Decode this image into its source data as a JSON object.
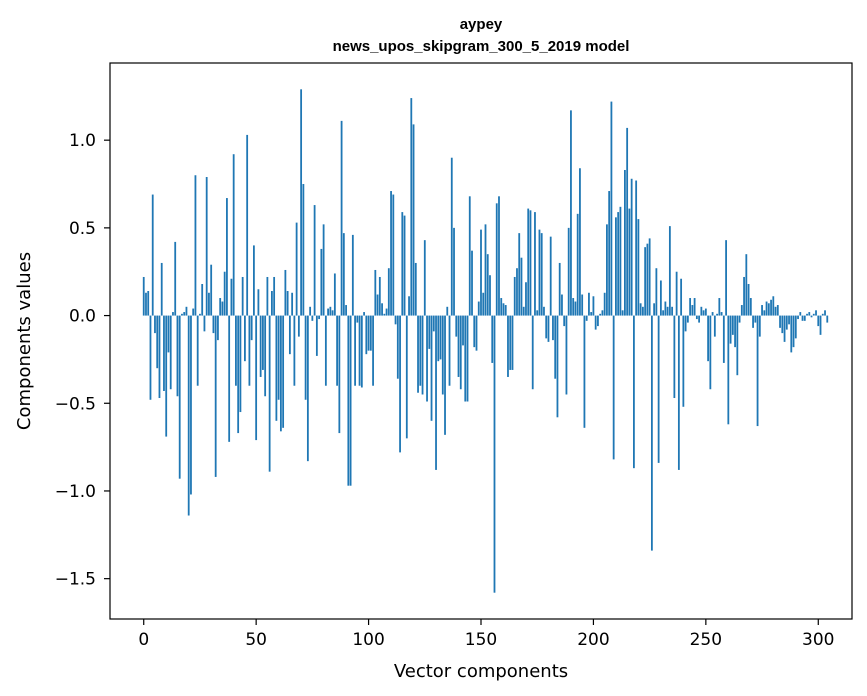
{
  "chart_data": {
    "type": "bar",
    "title_line1": "aypey",
    "title_line2": "news_upos_skipgram_300_5_2019 model",
    "xlabel": "Vector components",
    "ylabel": "Components values",
    "xlim": [
      -15,
      315
    ],
    "ylim": [
      -1.73,
      1.44
    ],
    "xticks": [
      0,
      50,
      100,
      150,
      200,
      250,
      300
    ],
    "yticks": [
      -1.5,
      -1.0,
      -0.5,
      0.0,
      0.5,
      1.0
    ],
    "ytick_labels": [
      "−1.5",
      "−1.0",
      "−0.5",
      "0.0",
      "0.5",
      "1.0"
    ],
    "bar_width": 0.8,
    "color": "#1f77b4",
    "values": [
      0.22,
      0.13,
      0.14,
      -0.48,
      0.69,
      -0.1,
      -0.3,
      -0.47,
      0.3,
      -0.43,
      -0.69,
      -0.21,
      -0.42,
      0.02,
      0.42,
      -0.46,
      -0.93,
      0.01,
      0.02,
      0.05,
      -1.14,
      -1.02,
      0.04,
      0.8,
      -0.4,
      0.01,
      0.18,
      -0.09,
      0.79,
      0.13,
      0.29,
      -0.1,
      -0.92,
      -0.14,
      0.1,
      0.08,
      0.25,
      0.67,
      -0.72,
      0.21,
      0.92,
      -0.4,
      -0.67,
      -0.55,
      0.22,
      -0.26,
      1.03,
      -0.4,
      -0.14,
      0.4,
      -0.71,
      0.15,
      -0.35,
      -0.31,
      -0.46,
      0.22,
      -0.89,
      0.14,
      0.22,
      -0.6,
      -0.48,
      -0.66,
      -0.64,
      0.26,
      0.14,
      -0.22,
      0.13,
      -0.4,
      0.53,
      -0.12,
      1.29,
      0.75,
      -0.48,
      -0.83,
      0.05,
      -0.03,
      0.63,
      -0.23,
      -0.02,
      0.38,
      0.52,
      -0.4,
      0.04,
      0.05,
      0.03,
      0.24,
      -0.4,
      -0.67,
      1.11,
      0.47,
      0.06,
      -0.97,
      -0.97,
      0.46,
      -0.4,
      -0.04,
      -0.4,
      -0.41,
      0.02,
      -0.22,
      -0.2,
      -0.2,
      -0.4,
      0.26,
      0.12,
      0.22,
      0.07,
      0.01,
      0.04,
      0.27,
      0.71,
      0.69,
      -0.05,
      -0.36,
      -0.78,
      0.59,
      0.57,
      -0.7,
      0.11,
      1.24,
      1.09,
      0.3,
      -0.44,
      -0.4,
      -0.45,
      0.43,
      -0.49,
      -0.19,
      -0.6,
      -0.09,
      -0.88,
      -0.26,
      -0.25,
      -0.45,
      -0.68,
      0.05,
      -0.4,
      0.9,
      0.5,
      -0.12,
      -0.35,
      -0.42,
      -0.17,
      -0.49,
      -0.49,
      0.68,
      0.37,
      -0.18,
      -0.2,
      0.08,
      0.49,
      0.13,
      0.52,
      0.35,
      0.23,
      -0.27,
      -1.58,
      0.64,
      0.68,
      0.1,
      0.07,
      0.06,
      -0.35,
      -0.31,
      -0.31,
      0.22,
      0.27,
      0.47,
      0.33,
      0.05,
      0.19,
      0.61,
      0.6,
      -0.42,
      0.59,
      0.03,
      0.49,
      0.47,
      0.05,
      -0.13,
      -0.15,
      0.45,
      -0.14,
      -0.36,
      -0.58,
      0.3,
      0.12,
      -0.06,
      -0.45,
      0.5,
      1.17,
      0.1,
      0.08,
      0.58,
      0.84,
      0.12,
      -0.64,
      -0.03,
      0.13,
      0.02,
      0.11,
      -0.08,
      -0.06,
      0.01,
      0.03,
      0.13,
      0.52,
      0.71,
      1.22,
      -0.82,
      0.56,
      0.59,
      0.62,
      0.03,
      0.83,
      1.07,
      0.61,
      0.78,
      -0.87,
      0.77,
      0.55,
      0.07,
      0.05,
      0.39,
      0.41,
      0.44,
      -1.34,
      0.07,
      0.27,
      -0.84,
      0.2,
      0.03,
      0.08,
      0.05,
      0.51,
      0.05,
      -0.47,
      0.25,
      -0.88,
      0.21,
      -0.52,
      -0.09,
      -0.04,
      0.1,
      0.06,
      0.1,
      -0.02,
      -0.04,
      0.05,
      0.03,
      0.04,
      -0.26,
      -0.42,
      0.02,
      -0.12,
      0.01,
      0.1,
      0.02,
      -0.27,
      0.43,
      -0.62,
      -0.16,
      -0.11,
      -0.18,
      -0.34,
      -0.04,
      0.06,
      0.22,
      0.35,
      0.18,
      0.1,
      -0.07,
      -0.04,
      -0.63,
      -0.12,
      0.06,
      0.03,
      0.08,
      0.07,
      0.09,
      0.11,
      0.05,
      0.06,
      -0.07,
      -0.1,
      -0.15,
      -0.08,
      -0.05,
      -0.21,
      -0.18,
      -0.13,
      -0.02,
      0.02,
      -0.03,
      -0.03,
      0.01,
      0.02,
      -0.01,
      0.01,
      0.03,
      -0.06,
      -0.11,
      0.01,
      0.03,
      -0.04
    ]
  }
}
